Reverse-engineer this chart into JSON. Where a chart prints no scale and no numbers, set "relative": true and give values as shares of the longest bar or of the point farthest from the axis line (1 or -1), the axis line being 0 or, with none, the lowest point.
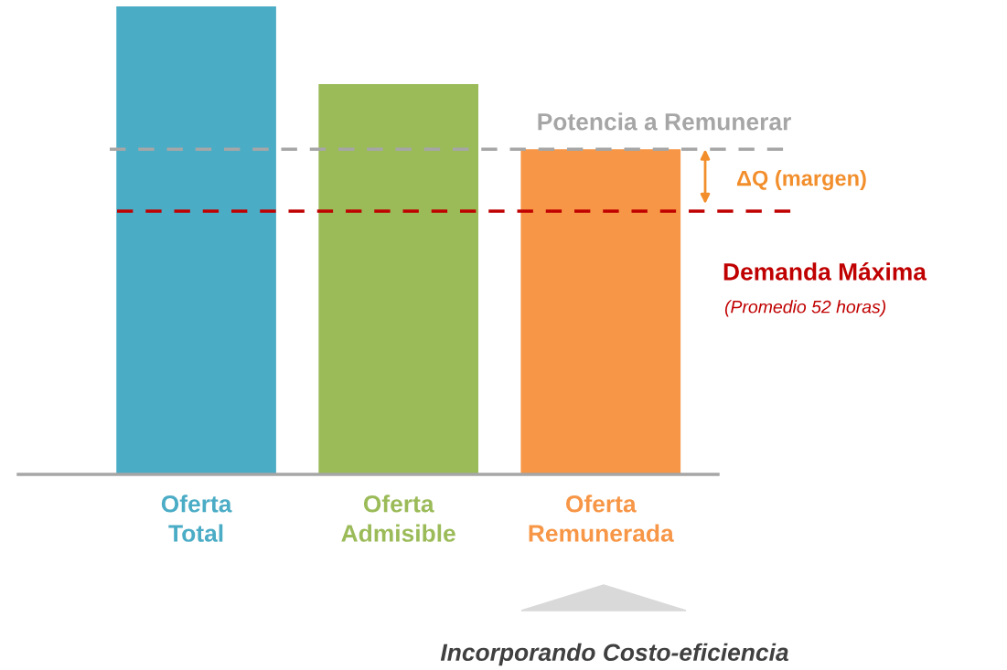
{
  "chart_data": {
    "type": "bar",
    "relative": true,
    "categories": [
      "Oferta\nTotal",
      "Oferta\nAdmisible",
      "Oferta\nRemunerada"
    ],
    "values": [
      1,
      0.834,
      0.695
    ],
    "colors": [
      "#4bacc6",
      "#9bbb59",
      "#f79646"
    ],
    "ref_lines": [
      {
        "axis": "y",
        "value": 0.695,
        "label": "Potencia a Remunerar",
        "color": "#a6a6a6",
        "line_style": "dashed"
      },
      {
        "axis": "y",
        "value": 0.5625,
        "label": "Demanda Máxima",
        "color": "#c00000",
        "line_style": "dashed"
      }
    ],
    "annotations": [
      "ΔQ (margen)",
      "(Promedio 52 horas)",
      "Incorporando Costo-eficiencia"
    ],
    "grid": false,
    "legend": false
  }
}
